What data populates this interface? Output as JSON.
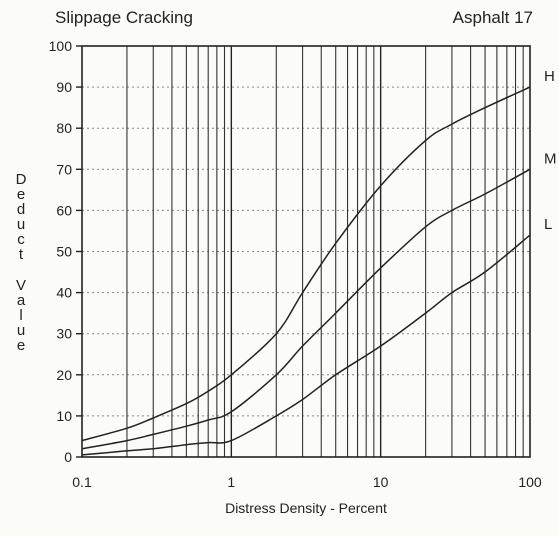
{
  "chart_data": {
    "type": "line",
    "title": "Slippage Cracking",
    "subtitle": "Asphalt 17",
    "xlabel": "Distress Density - Percent",
    "ylabel": "Deduct Value",
    "x_scale": "log",
    "xlim": [
      0.1,
      100
    ],
    "ylim": [
      0,
      100
    ],
    "x_tick_labels": [
      "0.1",
      "1",
      "10",
      "100"
    ],
    "y_tick_labels": [
      "0",
      "10",
      "20",
      "30",
      "40",
      "50",
      "60",
      "70",
      "80",
      "90",
      "100"
    ],
    "grid": true,
    "series": [
      {
        "name": "H",
        "x": [
          0.1,
          0.2,
          0.3,
          0.5,
          0.7,
          1,
          2,
          3,
          5,
          10,
          20,
          30,
          50,
          100
        ],
        "y": [
          4,
          7,
          9.5,
          13,
          16,
          20,
          30,
          40,
          52,
          66,
          77,
          81,
          85,
          90
        ]
      },
      {
        "name": "M",
        "x": [
          0.1,
          0.2,
          0.3,
          0.5,
          0.7,
          1,
          2,
          3,
          5,
          10,
          20,
          30,
          50,
          100
        ],
        "y": [
          2,
          4,
          5.5,
          7.5,
          9,
          11,
          20,
          27,
          35,
          46,
          56,
          60,
          64,
          70
        ]
      },
      {
        "name": "L",
        "x": [
          0.1,
          0.2,
          0.3,
          0.5,
          0.7,
          1,
          2,
          3,
          5,
          10,
          20,
          30,
          50,
          100
        ],
        "y": [
          0.5,
          1.5,
          2,
          3,
          3.5,
          4,
          10,
          14,
          20,
          27,
          35,
          40,
          45,
          54
        ]
      }
    ]
  }
}
